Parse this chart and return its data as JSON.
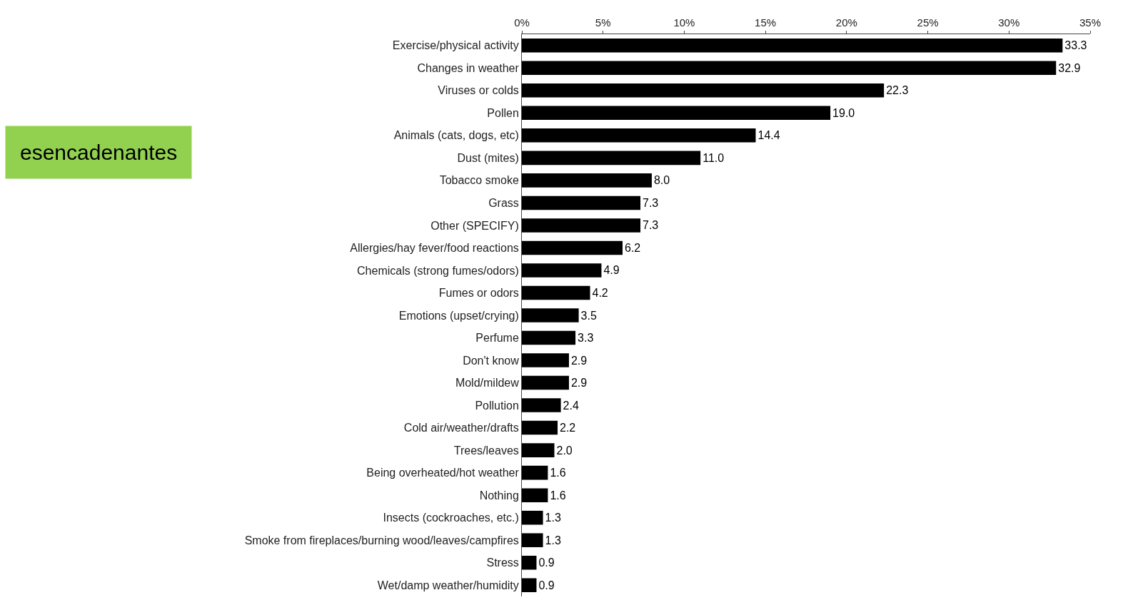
{
  "chart_data": {
    "type": "bar",
    "orientation": "horizontal",
    "categories": [
      "Exercise/physical activity",
      "Changes in weather",
      "Viruses or colds",
      "Pollen",
      "Animals (cats, dogs, etc)",
      "Dust (mites)",
      "Tobacco smoke",
      "Grass",
      "Other (SPECIFY)",
      "Allergies/hay fever/food reactions",
      "Chemicals (strong fumes/odors)",
      "Fumes or odors",
      "Emotions (upset/crying)",
      "Perfume",
      "Don't know",
      "Mold/mildew",
      "Pollution",
      "Cold air/weather/drafts",
      "Trees/leaves",
      "Being overheated/hot weather",
      "Nothing",
      "Insects (cockroaches, etc.)",
      "Smoke from fireplaces/burning wood/leaves/campfires",
      "Stress",
      "Wet/damp weather/humidity"
    ],
    "values": [
      33.3,
      32.9,
      22.3,
      19.0,
      14.4,
      11.0,
      8.0,
      7.3,
      7.3,
      6.2,
      4.9,
      4.2,
      3.5,
      3.3,
      2.9,
      2.9,
      2.4,
      2.2,
      2.0,
      1.6,
      1.6,
      1.3,
      1.3,
      0.9,
      0.9
    ],
    "value_labels": [
      "33.3",
      "32.9",
      "22.3",
      "19.0",
      "14.4",
      "11.0",
      "8.0",
      "7.3",
      "7.3",
      "6.2",
      "4.9",
      "4.2",
      "3.5",
      "3.3",
      "2.9",
      "2.9",
      "2.4",
      "2.2",
      "2.0",
      "1.6",
      "1.6",
      "1.3",
      "1.3",
      "0.9",
      "0.9"
    ],
    "color": "#000000",
    "xlim": [
      0,
      35
    ],
    "xticks": [
      {
        "value": 0,
        "label": "0%"
      },
      {
        "value": 5,
        "label": "5%"
      },
      {
        "value": 10,
        "label": "10%"
      },
      {
        "value": 15,
        "label": "15%"
      },
      {
        "value": 20,
        "label": "20%"
      },
      {
        "value": 25,
        "label": "25%"
      },
      {
        "value": 30,
        "label": "30%"
      },
      {
        "value": 35,
        "label": "35%"
      }
    ],
    "grid": false,
    "annotations": [
      "esencadenantes"
    ]
  }
}
